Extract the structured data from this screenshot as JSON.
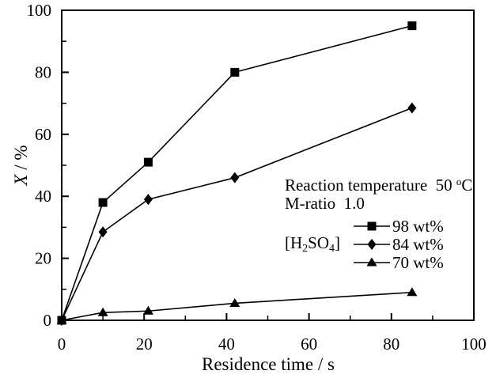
{
  "figure": {
    "background": "#ffffff",
    "line_color": "#000000"
  },
  "chart_data": {
    "type": "line",
    "title": "",
    "xlabel": "Residence time / s",
    "ylabel": "X / %",
    "ylabel_italic": "X",
    "ylabel_rest": " / %",
    "xlim": [
      0,
      100
    ],
    "ylim": [
      0,
      100
    ],
    "x_ticks": [
      0,
      20,
      40,
      60,
      80,
      100
    ],
    "y_ticks": [
      0,
      20,
      40,
      60,
      80,
      100
    ],
    "x_minor_ticks": [
      10,
      30,
      50,
      70,
      90
    ],
    "y_minor_ticks": [
      10,
      30,
      50,
      70,
      90
    ],
    "grid": false,
    "legend_position": "inside-right",
    "x": [
      0,
      10,
      21,
      42,
      85
    ],
    "series": [
      {
        "name": "98 wt%",
        "marker": "square",
        "values": [
          0,
          38,
          51,
          80,
          95
        ]
      },
      {
        "name": "84 wt%",
        "marker": "diamond",
        "values": [
          0,
          28.5,
          39,
          46,
          68.5
        ]
      },
      {
        "name": "70 wt%",
        "marker": "triangle",
        "values": [
          0,
          2.5,
          3,
          5.5,
          9
        ]
      }
    ],
    "annotations": {
      "reaction_temperature": {
        "text": "Reaction temperature  50 ",
        "sup": "o",
        "unit": "C"
      },
      "m_ratio": "M-ratio  1.0",
      "legend_title": {
        "pre": "[H",
        "sub1": "2",
        "mid": "SO",
        "sub2": "4",
        "post": "]"
      }
    }
  }
}
